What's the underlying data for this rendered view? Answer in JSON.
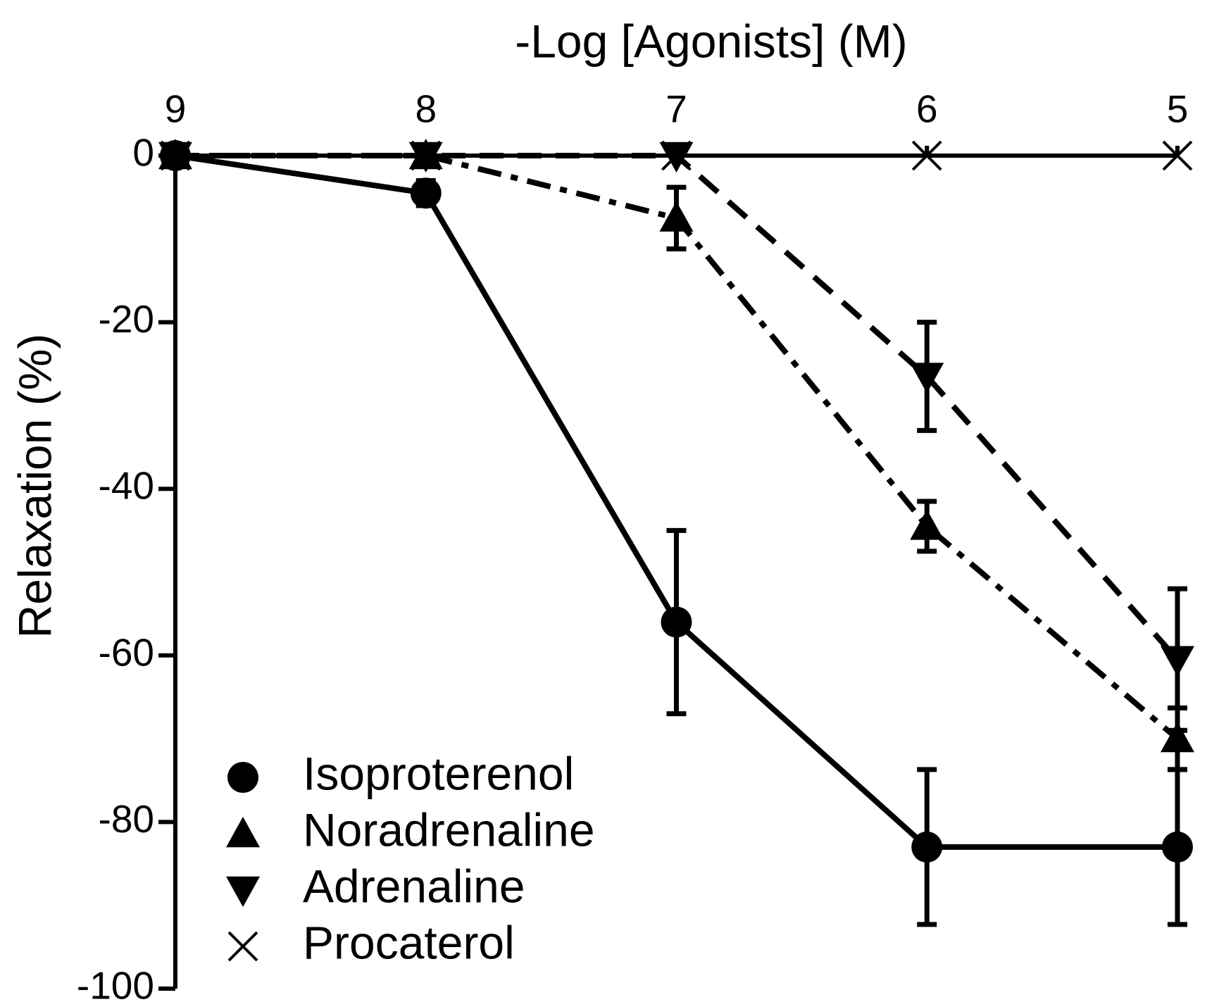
{
  "chart_data": {
    "type": "line",
    "x_label": "-Log [Agonists] (M)",
    "y_label": "Relaxation (%)",
    "x": [
      9,
      8,
      7,
      6,
      5
    ],
    "xlim": [
      9,
      5
    ],
    "xticks": [
      9,
      8,
      7,
      6,
      5
    ],
    "ylim": [
      -100,
      0
    ],
    "yticks": [
      -100,
      -80,
      -60,
      -40,
      -20,
      0
    ],
    "legend": "lower left",
    "series": [
      {
        "name": "Isoproterenol",
        "color": "#000000",
        "marker": "circle",
        "dash": "solid",
        "values": [
          0,
          -4.5,
          -56,
          -83,
          -83
        ],
        "errors": [
          null,
          1.5,
          11,
          9.3,
          9.3
        ]
      },
      {
        "name": "Noradrenaline",
        "color": "#000000",
        "marker": "triangle-up",
        "dash": "dash-dot",
        "values": [
          0,
          0,
          -7.5,
          -44.5,
          -70
        ],
        "errors": [
          null,
          null,
          3.7,
          3,
          3.7
        ]
      },
      {
        "name": "Adrenaline",
        "color": "#000000",
        "marker": "triangle-down",
        "dash": "dashed",
        "values": [
          0,
          0,
          0,
          -26.5,
          -60.5
        ],
        "errors": [
          null,
          null,
          null,
          6.5,
          8.5
        ]
      },
      {
        "name": "Procaterol",
        "color": "#000000",
        "marker": "x",
        "dash": "dotted",
        "values": [
          0,
          0,
          0,
          0,
          0
        ],
        "errors": [
          null,
          null,
          null,
          null,
          null
        ]
      }
    ]
  }
}
